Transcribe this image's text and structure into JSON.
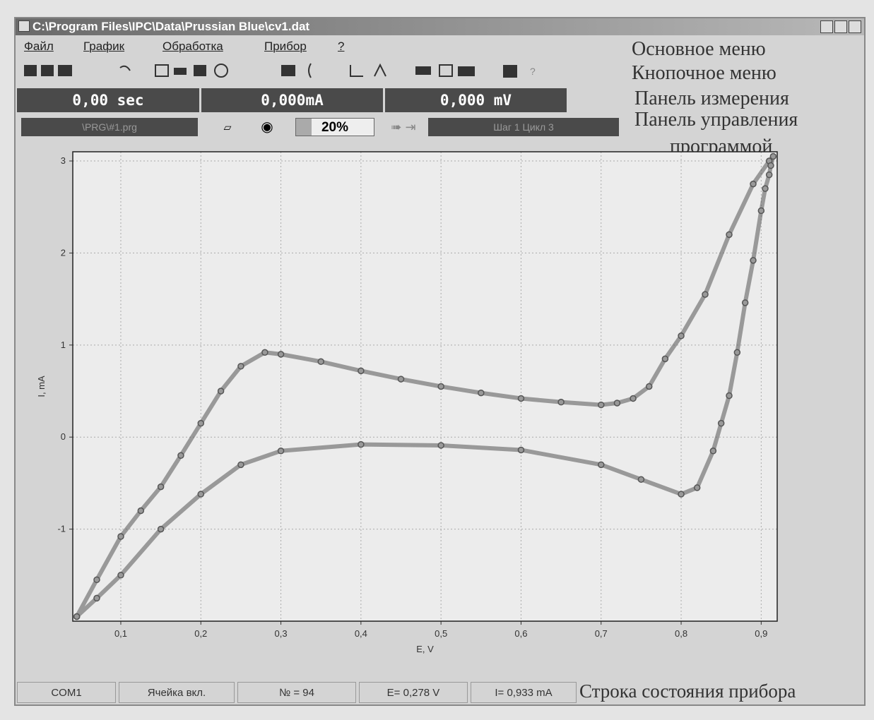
{
  "window": {
    "title": "C:\\Program Files\\IPC\\Data\\Prussian Blue\\cv1.dat"
  },
  "menu": [
    "Файл",
    "График",
    "Обработка",
    "Прибор",
    "?"
  ],
  "annotations": [
    "Основное меню",
    "Кнопочное меню",
    "Панель измерения",
    "Панель управления",
    "программой",
    "Строка состояния прибора"
  ],
  "measurement": [
    "0,00 sec",
    "0,000mA",
    "0,000 mV"
  ],
  "program_panel": {
    "file": "\\PRG\\#1.prg",
    "progress": "20%",
    "step": "Шаг 1 Цикл 3"
  },
  "status_bar": [
    "COM1",
    "Ячейка вкл.",
    "№ = 94",
    "E= 0,278 V",
    "I= 0,933 mA"
  ],
  "chart_data": {
    "type": "scatter",
    "x_label": "E, V",
    "y_label": "I, mA",
    "color": "#555555",
    "grid": true,
    "xlim": [
      0.04,
      0.92
    ],
    "ylim": [
      -2,
      3.1
    ],
    "xticks": [
      {
        "value": 0.1,
        "label": "0,1"
      },
      {
        "value": 0.2,
        "label": "0,2"
      },
      {
        "value": 0.3,
        "label": "0,3"
      },
      {
        "value": 0.4,
        "label": "0,4"
      },
      {
        "value": 0.5,
        "label": "0,5"
      },
      {
        "value": 0.6,
        "label": "0,6"
      },
      {
        "value": 0.7,
        "label": "0,7"
      },
      {
        "value": 0.8,
        "label": "0,8"
      },
      {
        "value": 0.9,
        "label": "0,9"
      }
    ],
    "yticks": [
      -1,
      0,
      1,
      2,
      3
    ],
    "x": [
      0.045,
      0.07,
      0.1,
      0.125,
      0.15,
      0.175,
      0.2,
      0.225,
      0.25,
      0.28,
      0.3,
      0.35,
      0.4,
      0.45,
      0.5,
      0.55,
      0.6,
      0.65,
      0.7,
      0.72,
      0.74,
      0.76,
      0.78,
      0.8,
      0.83,
      0.86,
      0.89,
      0.91,
      0.915,
      0.912,
      0.91,
      0.905,
      0.9,
      0.89,
      0.88,
      0.87,
      0.86,
      0.85,
      0.84,
      0.82,
      0.8,
      0.75,
      0.7,
      0.6,
      0.5,
      0.4,
      0.3,
      0.25,
      0.2,
      0.15,
      0.1,
      0.07,
      0.045
    ],
    "values": [
      -1.95,
      -1.55,
      -1.08,
      -0.8,
      -0.54,
      -0.2,
      0.15,
      0.5,
      0.77,
      0.92,
      0.9,
      0.82,
      0.72,
      0.63,
      0.55,
      0.48,
      0.42,
      0.38,
      0.35,
      0.37,
      0.42,
      0.55,
      0.85,
      1.1,
      1.55,
      2.2,
      2.75,
      3.0,
      3.05,
      2.95,
      2.85,
      2.7,
      2.46,
      1.92,
      1.46,
      0.92,
      0.45,
      0.15,
      -0.15,
      -0.55,
      -0.62,
      -0.46,
      -0.3,
      -0.14,
      -0.09,
      -0.08,
      -0.15,
      -0.3,
      -0.62,
      -1.0,
      -1.5,
      -1.75,
      -1.95
    ]
  }
}
